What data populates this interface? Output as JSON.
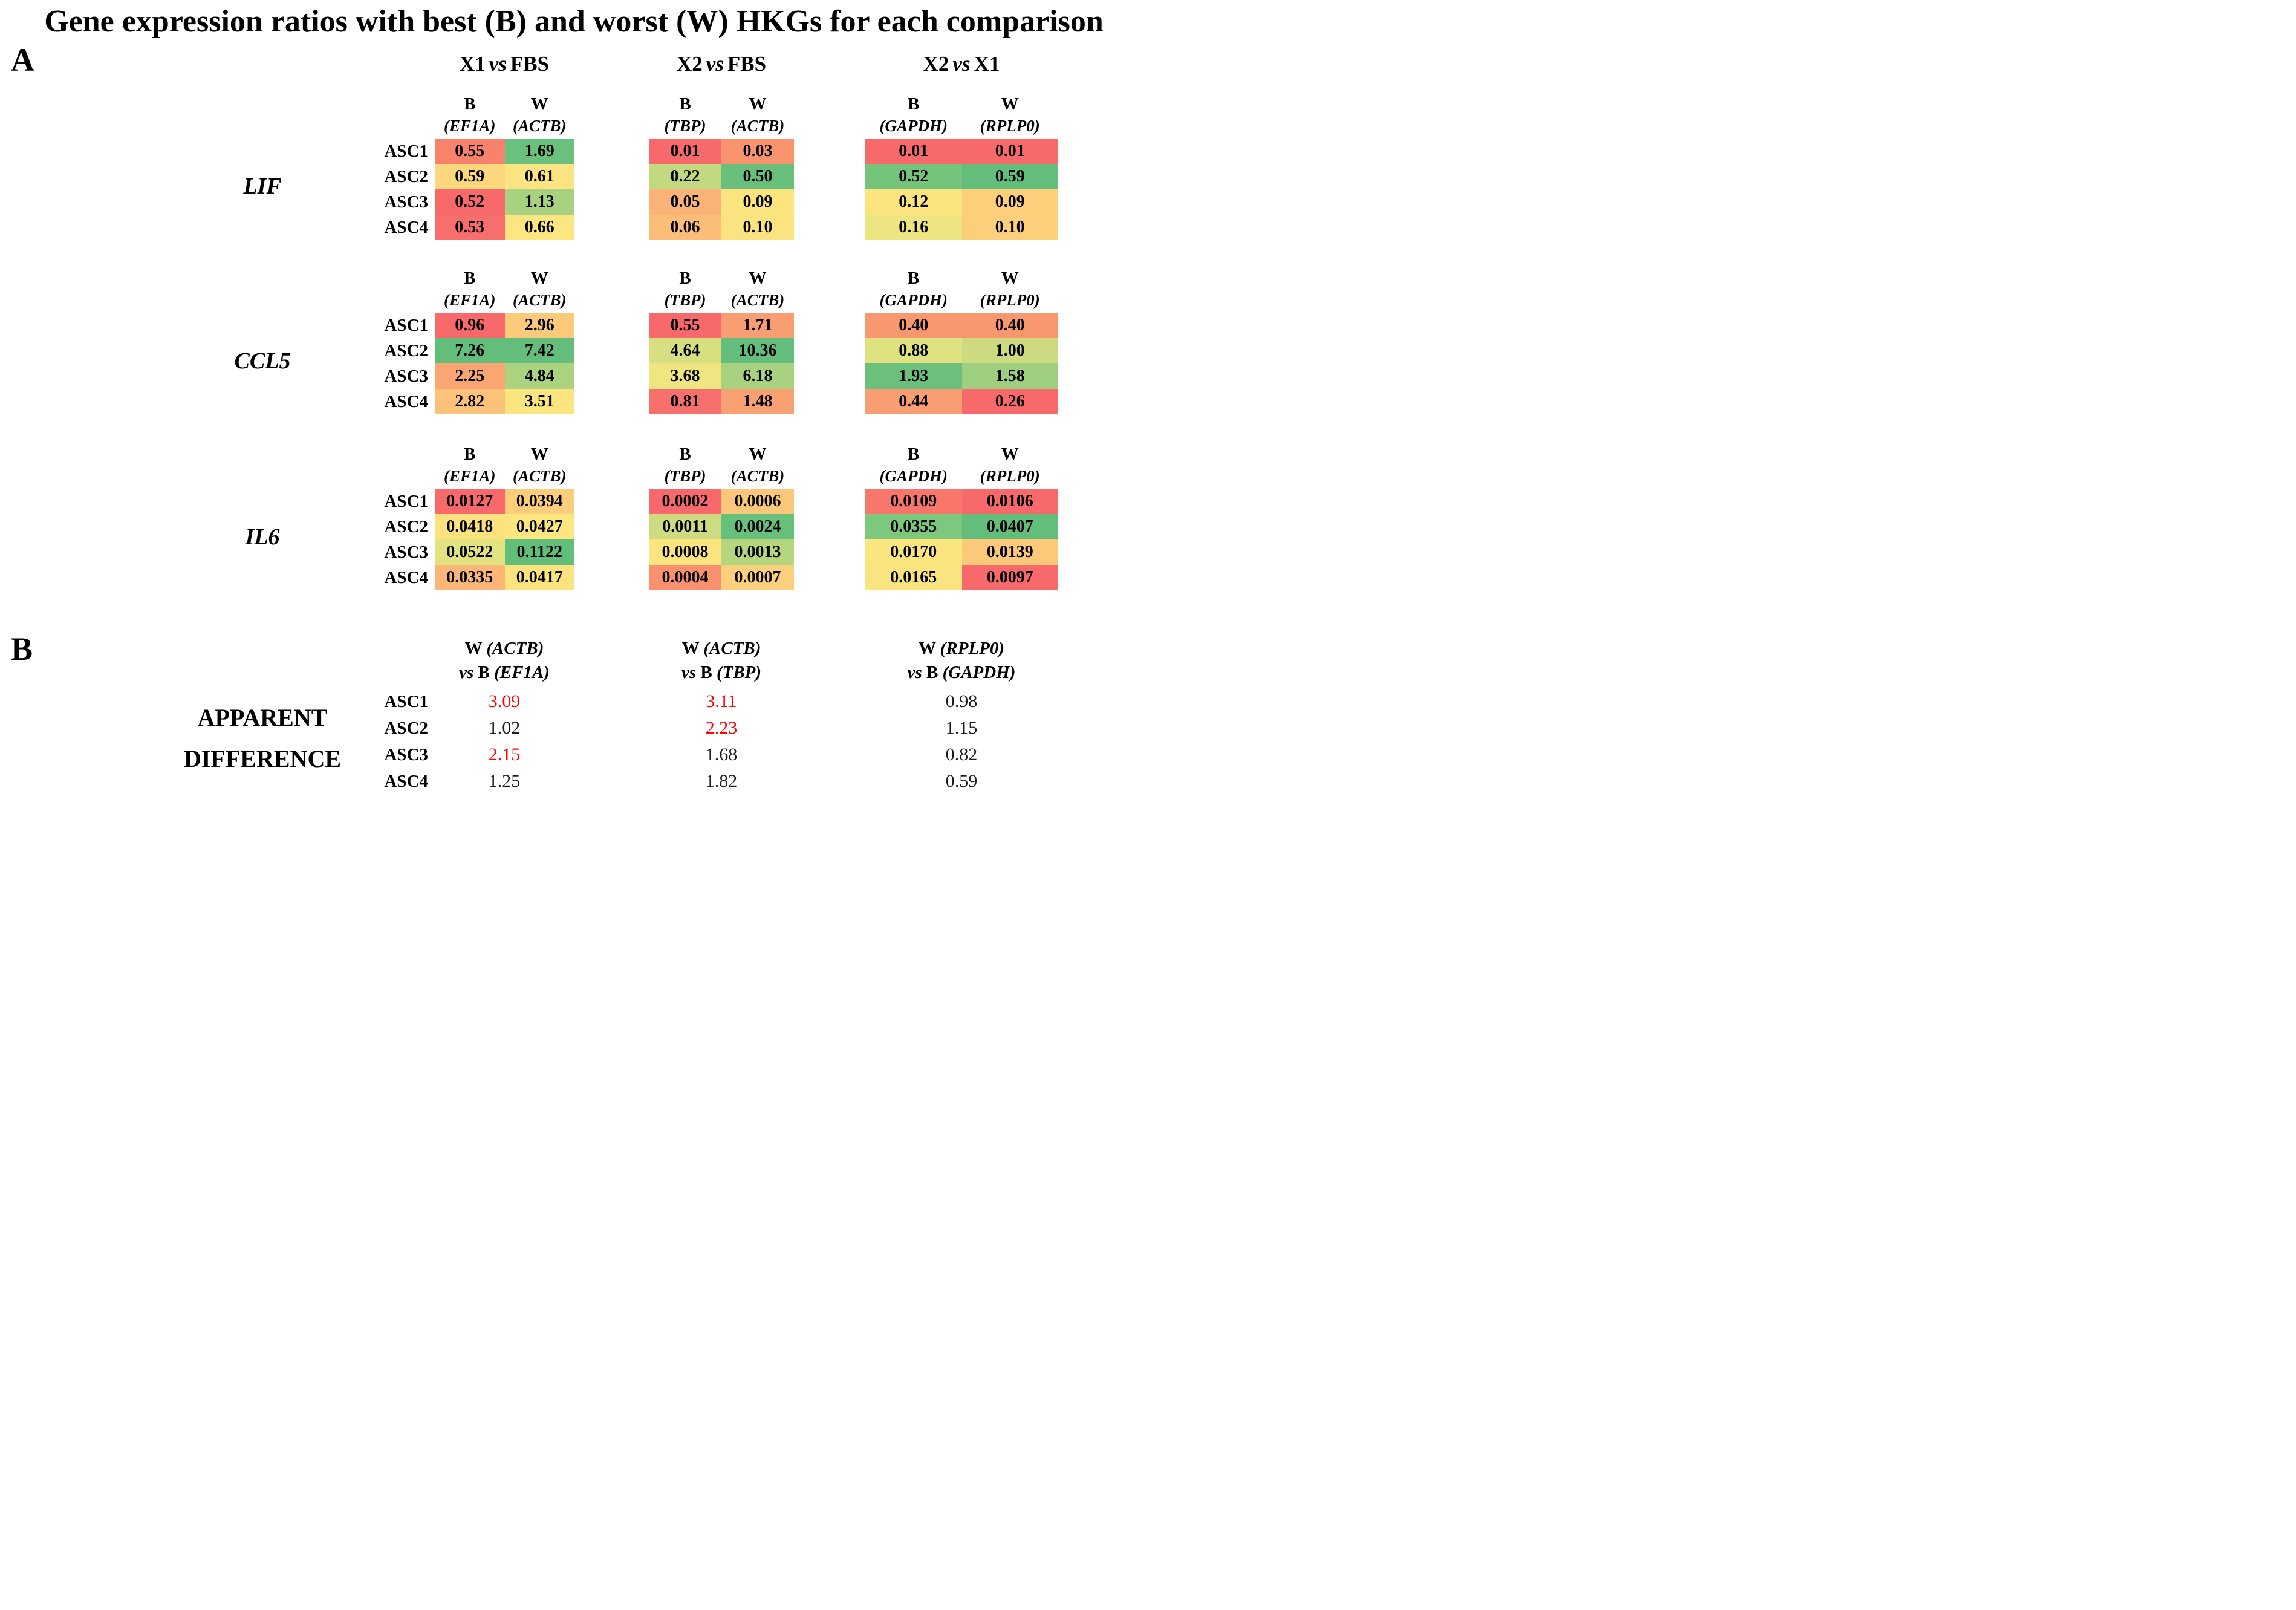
{
  "title": "Gene expression ratios with best (B) and worst (W) HKGs for each comparison",
  "panel_a": {
    "label": "A",
    "comparisons": [
      {
        "left": "X1",
        "vs": "vs",
        "right": "FBS"
      },
      {
        "left": "X2",
        "vs": "vs",
        "right": "FBS"
      },
      {
        "left": "X2",
        "vs": "vs",
        "right": "X1"
      }
    ],
    "row_labels": [
      "ASC1",
      "ASC2",
      "ASC3",
      "ASC4"
    ],
    "genes": [
      {
        "name": "LIF",
        "blocks": [
          {
            "b_label": "B",
            "w_label": "W",
            "b_gene": "(EF1A)",
            "w_gene": "(ACTB)",
            "rows": [
              {
                "b": {
                  "value": "0.55",
                  "color": "#f9826d"
                },
                "w": {
                  "value": "1.69",
                  "color": "#6ac07d"
                }
              },
              {
                "b": {
                  "value": "0.59",
                  "color": "#fbd87d"
                },
                "w": {
                  "value": "0.61",
                  "color": "#fbe481"
                }
              },
              {
                "b": {
                  "value": "0.52",
                  "color": "#f8696b"
                },
                "w": {
                  "value": "1.13",
                  "color": "#a8d27f"
                }
              },
              {
                "b": {
                  "value": "0.53",
                  "color": "#f86e6c"
                },
                "w": {
                  "value": "0.66",
                  "color": "#fbe681"
                }
              }
            ]
          },
          {
            "b_label": "B",
            "w_label": "W",
            "b_gene": "(TBP)",
            "w_gene": "(ACTB)",
            "rows": [
              {
                "b": {
                  "value": "0.01",
                  "color": "#f8696b"
                },
                "w": {
                  "value": "0.03",
                  "color": "#f9946f"
                }
              },
              {
                "b": {
                  "value": "0.22",
                  "color": "#c3d980"
                },
                "w": {
                  "value": "0.50",
                  "color": "#68c07c"
                }
              },
              {
                "b": {
                  "value": "0.05",
                  "color": "#fbb377"
                },
                "w": {
                  "value": "0.09",
                  "color": "#fce57f"
                }
              },
              {
                "b": {
                  "value": "0.06",
                  "color": "#fcbd79"
                },
                "w": {
                  "value": "0.10",
                  "color": "#fbe480"
                }
              }
            ]
          },
          {
            "b_label": "B",
            "w_label": "W",
            "b_gene": "(GAPDH)",
            "w_gene": "(RPLP0)",
            "rows": [
              {
                "b": {
                  "value": "0.01",
                  "color": "#f8696b"
                },
                "w": {
                  "value": "0.01",
                  "color": "#f8696b"
                }
              },
              {
                "b": {
                  "value": "0.52",
                  "color": "#74c47c"
                },
                "w": {
                  "value": "0.59",
                  "color": "#63be7b"
                }
              },
              {
                "b": {
                  "value": "0.12",
                  "color": "#fce57f"
                },
                "w": {
                  "value": "0.09",
                  "color": "#fccf7b"
                }
              },
              {
                "b": {
                  "value": "0.16",
                  "color": "#ece582"
                },
                "w": {
                  "value": "0.10",
                  "color": "#fccf7b"
                }
              }
            ]
          }
        ]
      },
      {
        "name": "CCL5",
        "blocks": [
          {
            "b_label": "B",
            "w_label": "W",
            "b_gene": "(EF1A)",
            "w_gene": "(ACTB)",
            "rows": [
              {
                "b": {
                  "value": "0.96",
                  "color": "#f8696b"
                },
                "w": {
                  "value": "2.96",
                  "color": "#fcca7b"
                }
              },
              {
                "b": {
                  "value": "7.26",
                  "color": "#63be7b"
                },
                "w": {
                  "value": "7.42",
                  "color": "#63be7b"
                }
              },
              {
                "b": {
                  "value": "2.25",
                  "color": "#faa674"
                },
                "w": {
                  "value": "4.84",
                  "color": "#abd37f"
                }
              },
              {
                "b": {
                  "value": "2.82",
                  "color": "#fbc279"
                },
                "w": {
                  "value": "3.51",
                  "color": "#fbe57f"
                }
              }
            ]
          },
          {
            "b_label": "B",
            "w_label": "W",
            "b_gene": "(TBP)",
            "w_gene": "(ACTB)",
            "rows": [
              {
                "b": {
                  "value": "0.55",
                  "color": "#f8696b"
                },
                "w": {
                  "value": "1.71",
                  "color": "#f99d72"
                }
              },
              {
                "b": {
                  "value": "4.64",
                  "color": "#d8df81"
                },
                "w": {
                  "value": "10.36",
                  "color": "#63be7b"
                }
              },
              {
                "b": {
                  "value": "3.68",
                  "color": "#f0e681"
                },
                "w": {
                  "value": "6.18",
                  "color": "#a8d27f"
                }
              },
              {
                "b": {
                  "value": "0.81",
                  "color": "#f8706d"
                },
                "w": {
                  "value": "1.48",
                  "color": "#f9a173"
                }
              }
            ]
          },
          {
            "b_label": "B",
            "w_label": "W",
            "b_gene": "(GAPDH)",
            "w_gene": "(RPLP0)",
            "rows": [
              {
                "b": {
                  "value": "0.40",
                  "color": "#f9976f"
                },
                "w": {
                  "value": "0.40",
                  "color": "#f9976f"
                }
              },
              {
                "b": {
                  "value": "0.88",
                  "color": "#e0e181"
                },
                "w": {
                  "value": "1.00",
                  "color": "#cdda80"
                }
              },
              {
                "b": {
                  "value": "1.93",
                  "color": "#6bc17c"
                },
                "w": {
                  "value": "1.58",
                  "color": "#9ecf7e"
                }
              },
              {
                "b": {
                  "value": "0.44",
                  "color": "#f99d72"
                },
                "w": {
                  "value": "0.26",
                  "color": "#f8696b"
                }
              }
            ]
          }
        ]
      },
      {
        "name": "IL6",
        "blocks": [
          {
            "b_label": "B",
            "w_label": "W",
            "b_gene": "(EF1A)",
            "w_gene": "(ACTB)",
            "rows": [
              {
                "b": {
                  "value": "0.0127",
                  "color": "#f8696b"
                },
                "w": {
                  "value": "0.0394",
                  "color": "#fcce7c"
                }
              },
              {
                "b": {
                  "value": "0.0418",
                  "color": "#fbe27e"
                },
                "w": {
                  "value": "0.0427",
                  "color": "#fce67f"
                }
              },
              {
                "b": {
                  "value": "0.0522",
                  "color": "#e2e281"
                },
                "w": {
                  "value": "0.1122",
                  "color": "#63be7b"
                }
              },
              {
                "b": {
                  "value": "0.0335",
                  "color": "#fbb678"
                },
                "w": {
                  "value": "0.0417",
                  "color": "#fbe37e"
                }
              }
            ]
          },
          {
            "b_label": "B",
            "w_label": "W",
            "b_gene": "(TBP)",
            "w_gene": "(ACTB)",
            "rows": [
              {
                "b": {
                  "value": "0.0002",
                  "color": "#f8696b"
                },
                "w": {
                  "value": "0.0006",
                  "color": "#fcc77b"
                }
              },
              {
                "b": {
                  "value": "0.0011",
                  "color": "#cedb80"
                },
                "w": {
                  "value": "0.0024",
                  "color": "#66bf7b"
                }
              },
              {
                "b": {
                  "value": "0.0008",
                  "color": "#fbe57f"
                },
                "w": {
                  "value": "0.0013",
                  "color": "#b5d67f"
                }
              },
              {
                "b": {
                  "value": "0.0004",
                  "color": "#f9906e"
                },
                "w": {
                  "value": "0.0007",
                  "color": "#fcd07c"
                }
              }
            ]
          },
          {
            "b_label": "B",
            "w_label": "W",
            "b_gene": "(GAPDH)",
            "w_gene": "(RPLP0)",
            "rows": [
              {
                "b": {
                  "value": "0.0109",
                  "color": "#f8766c"
                },
                "w": {
                  "value": "0.0106",
                  "color": "#f8696b"
                }
              },
              {
                "b": {
                  "value": "0.0355",
                  "color": "#7cc87d"
                },
                "w": {
                  "value": "0.0407",
                  "color": "#63be7b"
                }
              },
              {
                "b": {
                  "value": "0.0170",
                  "color": "#fbe57f"
                },
                "w": {
                  "value": "0.0139",
                  "color": "#fcc97b"
                }
              },
              {
                "b": {
                  "value": "0.0165",
                  "color": "#fae47f"
                },
                "w": {
                  "value": "0.0097",
                  "color": "#f8696b"
                }
              }
            ]
          }
        ]
      }
    ]
  },
  "panel_b": {
    "label": "B",
    "caption_line1": "APPARENT",
    "caption_line2": "DIFFERENCE",
    "row_labels": [
      "ASC1",
      "ASC2",
      "ASC3",
      "ASC4"
    ],
    "highlight_color": "#ff0000",
    "normal_color": "#1c1c1c",
    "columns": [
      {
        "w_label": "W",
        "w_gene": "(ACTB)",
        "vs_label": "vs",
        "b_label": "B",
        "b_gene": "(EF1A)",
        "values": [
          {
            "value": "3.09",
            "color": "#ff0000"
          },
          {
            "value": "1.02",
            "color": "#1c1c1c"
          },
          {
            "value": "2.15",
            "color": "#ff0000"
          },
          {
            "value": "1.25",
            "color": "#1c1c1c"
          }
        ]
      },
      {
        "w_label": "W",
        "w_gene": "(ACTB)",
        "vs_label": "vs",
        "b_label": "B",
        "b_gene": "(TBP)",
        "values": [
          {
            "value": "3.11",
            "color": "#ff0000"
          },
          {
            "value": "2.23",
            "color": "#ff0000"
          },
          {
            "value": "1.68",
            "color": "#1c1c1c"
          },
          {
            "value": "1.82",
            "color": "#1c1c1c"
          }
        ]
      },
      {
        "w_label": "W",
        "w_gene": "(RPLP0)",
        "vs_label": "vs",
        "b_label": "B",
        "b_gene": "(GAPDH)",
        "values": [
          {
            "value": "0.98",
            "color": "#1c1c1c"
          },
          {
            "value": "1.15",
            "color": "#1c1c1c"
          },
          {
            "value": "0.82",
            "color": "#1c1c1c"
          },
          {
            "value": "0.59",
            "color": "#1c1c1c"
          }
        ]
      }
    ]
  },
  "chart_data": {
    "type": "heatmap",
    "title": "Gene expression ratios with best (B) and worst (W) HKGs for each comparison",
    "panels": {
      "A": {
        "comparisons": [
          "X1 vs FBS",
          "X2 vs FBS",
          "X2 vs X1"
        ],
        "hkg_pairs": [
          {
            "comparison": "X1 vs FBS",
            "best": "EF1A",
            "worst": "ACTB"
          },
          {
            "comparison": "X2 vs FBS",
            "best": "TBP",
            "worst": "ACTB"
          },
          {
            "comparison": "X2 vs X1",
            "best": "GAPDH",
            "worst": "RPLP0"
          }
        ],
        "samples": [
          "ASC1",
          "ASC2",
          "ASC3",
          "ASC4"
        ],
        "series": [
          {
            "gene": "LIF",
            "X1_vs_FBS_B": [
              0.55,
              0.59,
              0.52,
              0.53
            ],
            "X1_vs_FBS_W": [
              1.69,
              0.61,
              1.13,
              0.66
            ],
            "X2_vs_FBS_B": [
              0.01,
              0.22,
              0.05,
              0.06
            ],
            "X2_vs_FBS_W": [
              0.03,
              0.5,
              0.09,
              0.1
            ],
            "X2_vs_X1_B": [
              0.01,
              0.52,
              0.12,
              0.16
            ],
            "X2_vs_X1_W": [
              0.01,
              0.59,
              0.09,
              0.1
            ]
          },
          {
            "gene": "CCL5",
            "X1_vs_FBS_B": [
              0.96,
              7.26,
              2.25,
              2.82
            ],
            "X1_vs_FBS_W": [
              2.96,
              7.42,
              4.84,
              3.51
            ],
            "X2_vs_FBS_B": [
              0.55,
              4.64,
              3.68,
              0.81
            ],
            "X2_vs_FBS_W": [
              1.71,
              10.36,
              6.18,
              1.48
            ],
            "X2_vs_X1_B": [
              0.4,
              0.88,
              1.93,
              0.44
            ],
            "X2_vs_X1_W": [
              0.4,
              1.0,
              1.58,
              0.26
            ]
          },
          {
            "gene": "IL6",
            "X1_vs_FBS_B": [
              0.0127,
              0.0418,
              0.0522,
              0.0335
            ],
            "X1_vs_FBS_W": [
              0.0394,
              0.0427,
              0.1122,
              0.0417
            ],
            "X2_vs_FBS_B": [
              0.0002,
              0.0011,
              0.0008,
              0.0004
            ],
            "X2_vs_FBS_W": [
              0.0006,
              0.0024,
              0.0013,
              0.0007
            ],
            "X2_vs_X1_B": [
              0.0109,
              0.0355,
              0.017,
              0.0165
            ],
            "X2_vs_X1_W": [
              0.0106,
              0.0407,
              0.0139,
              0.0097
            ]
          }
        ],
        "color_scale": {
          "low": "#f8696b",
          "mid": "#ffe984",
          "high": "#63be7b"
        }
      },
      "B": {
        "label": "APPARENT DIFFERENCE",
        "columns": [
          "W (ACTB) vs B (EF1A)",
          "W (ACTB) vs B (TBP)",
          "W (RPLP0) vs B (GAPDH)"
        ],
        "samples": [
          "ASC1",
          "ASC2",
          "ASC3",
          "ASC4"
        ],
        "values": [
          [
            3.09,
            1.02,
            2.15,
            1.25
          ],
          [
            3.11,
            2.23,
            1.68,
            1.82
          ],
          [
            0.98,
            1.15,
            0.82,
            0.59
          ]
        ],
        "highlighted_red": [
          [
            true,
            false,
            true,
            false
          ],
          [
            true,
            true,
            false,
            false
          ],
          [
            false,
            false,
            false,
            false
          ]
        ]
      }
    }
  }
}
